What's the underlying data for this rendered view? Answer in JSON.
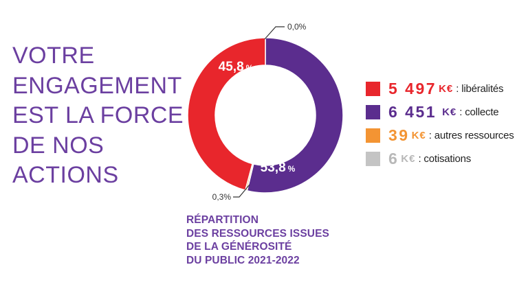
{
  "headline": [
    "VOTRE",
    "ENGAGEMENT",
    "EST LA FORCE",
    "DE NOS",
    "ACTIONS"
  ],
  "caption": [
    "RÉPARTITION",
    "DES RESSOURCES ISSUES",
    "DE LA GÉNÉROSITÉ",
    "DU PUBLIC 2021-2022"
  ],
  "chart_data": {
    "type": "pie",
    "donut": true,
    "start": "top",
    "direction": "clockwise",
    "slices": [
      {
        "label": "collecte",
        "value_text": "6 451",
        "unit": "K€",
        "value": 6451,
        "percent": 53.8,
        "percent_label": "53,8",
        "percent_sign": "%",
        "color": "#5b2d8e"
      },
      {
        "label": "cotisations",
        "value_text": "6",
        "unit": "K€",
        "value": 6,
        "percent": 0.0,
        "percent_label": "0,0%",
        "color": "#c4c4c4"
      },
      {
        "label": "autres ressources",
        "value_text": "39",
        "unit": "K€",
        "value": 39,
        "percent": 0.3,
        "percent_label": "0,3%",
        "color": "#f39433"
      },
      {
        "label": "libéralités",
        "value_text": "5 497",
        "unit": "K€",
        "value": 5497,
        "percent": 45.8,
        "percent_label": "45,8",
        "percent_sign": "%",
        "color": "#e8262c"
      }
    ],
    "legend_order": [
      "libéralités",
      "collecte",
      "autres ressources",
      "cotisations"
    ],
    "legend_placement": "right"
  }
}
